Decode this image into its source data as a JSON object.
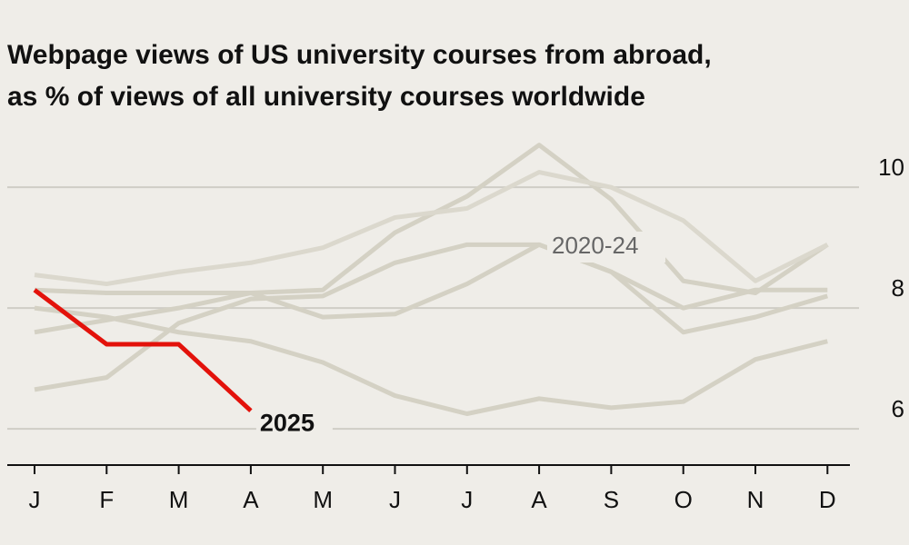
{
  "chart_data": {
    "type": "line",
    "title": [
      "Webpage views of US university courses from abroad,",
      "as % of views of all university courses worldwide"
    ],
    "categories": [
      "J",
      "F",
      "M",
      "A",
      "M",
      "J",
      "J",
      "A",
      "S",
      "O",
      "N",
      "D"
    ],
    "group_label": "2020-24",
    "series": [
      {
        "color": "#d4d1c4",
        "values": [
          7.6,
          7.8,
          8.0,
          8.25,
          8.3,
          9.25,
          9.85,
          10.7,
          9.8,
          8.45,
          8.25,
          9.05
        ]
      },
      {
        "color": "#dbd8cd",
        "values": [
          8.55,
          8.4,
          8.6,
          8.75,
          9.0,
          9.5,
          9.65,
          10.25,
          10.0,
          9.45,
          8.45,
          9.05
        ]
      },
      {
        "color": "#d4d1c4",
        "values": [
          6.65,
          6.85,
          7.75,
          8.15,
          8.2,
          8.75,
          9.05,
          9.05,
          8.6,
          8.0,
          8.3,
          8.3
        ]
      },
      {
        "color": "#d4d1c4",
        "values": [
          8.3,
          8.25,
          8.25,
          8.25,
          7.85,
          7.9,
          8.4,
          9.05,
          8.6,
          7.6,
          7.85,
          8.2
        ]
      },
      {
        "color": "#d4d1c4",
        "values": [
          8.0,
          7.85,
          7.6,
          7.45,
          7.1,
          6.55,
          6.25,
          6.5,
          6.35,
          6.45,
          7.15,
          7.45
        ]
      },
      {
        "name": "2025",
        "color": "#e3120b",
        "values": [
          8.3,
          7.4,
          7.4,
          6.3,
          null,
          null,
          null,
          null,
          null,
          null,
          null,
          null
        ]
      }
    ],
    "ylim": [
      5.4,
      10.8
    ],
    "yticks": [
      6,
      8,
      10
    ],
    "grid": true
  }
}
